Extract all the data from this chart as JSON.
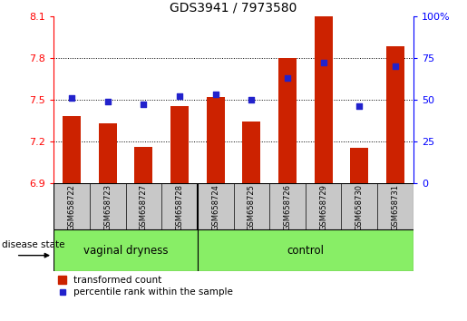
{
  "title": "GDS3941 / 7973580",
  "samples": [
    "GSM658722",
    "GSM658723",
    "GSM658727",
    "GSM658728",
    "GSM658724",
    "GSM658725",
    "GSM658726",
    "GSM658729",
    "GSM658730",
    "GSM658731"
  ],
  "transformed_count": [
    7.38,
    7.33,
    7.16,
    7.45,
    7.52,
    7.34,
    7.8,
    8.1,
    7.15,
    7.88
  ],
  "percentile_rank": [
    51,
    49,
    47,
    52,
    53,
    50,
    63,
    72,
    46,
    70
  ],
  "ylim_left": [
    6.9,
    8.1
  ],
  "ylim_right": [
    0,
    100
  ],
  "yticks_left": [
    6.9,
    7.2,
    7.5,
    7.8,
    8.1
  ],
  "yticks_right": [
    0,
    25,
    50,
    75,
    100
  ],
  "ytick_labels_left": [
    "6.9",
    "7.2",
    "7.5",
    "7.8",
    "8.1"
  ],
  "ytick_labels_right": [
    "0",
    "25",
    "50",
    "75",
    "100%"
  ],
  "grid_lines": [
    7.2,
    7.5,
    7.8
  ],
  "bar_color": "#cc2200",
  "marker_color": "#2222cc",
  "group1_label": "vaginal dryness",
  "group2_label": "control",
  "group1_samples": 4,
  "group2_samples": 6,
  "disease_state_label": "disease state",
  "legend1": "transformed count",
  "legend2": "percentile rank within the sample",
  "group_bg_color": "#88ee66",
  "tick_area_bg": "#c8c8c8",
  "bar_width": 0.5
}
